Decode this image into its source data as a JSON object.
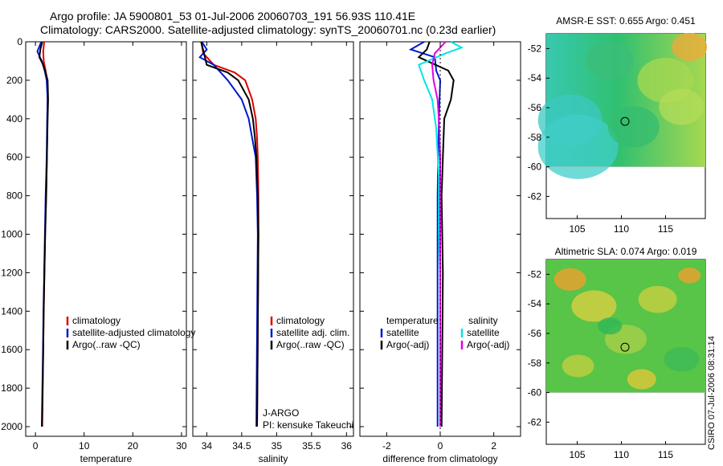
{
  "titles": {
    "line1": "Argo profile: JA 5900801_53 01-Jul-2006 20060703_191 56.93S 110.41E",
    "line2": "Climatology: CARS2000. Satellite-adjusted climatology: synTS_20060701.nc (0.23d earlier)"
  },
  "colors": {
    "climatology": "#e00000",
    "satellite": "#0018d0",
    "argo": "#000000",
    "satellite_diff": "#00e5e5",
    "argo_sal_diff": "#e000e0"
  },
  "chart_data": [
    {
      "type": "line",
      "name": "temperature-panel",
      "xlabel": "temperature",
      "ylabel": "",
      "xlim": [
        -2,
        31
      ],
      "ylim": [
        2050,
        0
      ],
      "xticks": [
        0,
        10,
        20,
        30
      ],
      "xtick_labels": [
        "0",
        "10",
        "20",
        "30"
      ],
      "yticks": [
        0,
        200,
        400,
        600,
        800,
        1000,
        1200,
        1400,
        1600,
        1800,
        2000
      ],
      "ytick_labels": [
        "0",
        "200",
        "400",
        "600",
        "800",
        "1000",
        "1200",
        "1400",
        "1600",
        "1800",
        "2000"
      ],
      "legend": [
        "climatology",
        "satellite-adjusted climatology",
        "Argo(..raw -QC)"
      ],
      "series": [
        {
          "name": "climatology",
          "color": "climatology",
          "depth": [
            0,
            50,
            100,
            150,
            200,
            300,
            400,
            600,
            800,
            1000,
            1200,
            1400,
            1600,
            2000
          ],
          "values": [
            1.8,
            1.6,
            1.7,
            2.1,
            2.4,
            2.5,
            2.45,
            2.35,
            2.2,
            2.0,
            1.85,
            1.7,
            1.6,
            1.4
          ]
        },
        {
          "name": "satellite-adjusted climatology",
          "color": "satellite",
          "depth": [
            0,
            50,
            100,
            150,
            200,
            300,
            400,
            600,
            800,
            1000,
            1200,
            1400,
            1600,
            2000
          ],
          "values": [
            1.2,
            0.4,
            1.3,
            1.9,
            2.3,
            2.5,
            2.4,
            2.3,
            2.1,
            1.95,
            1.8,
            1.65,
            1.55,
            1.3
          ]
        },
        {
          "name": "Argo(..raw -QC)",
          "color": "argo",
          "depth": [
            0,
            40,
            80,
            120,
            160,
            200,
            300,
            400,
            600,
            800,
            1000,
            1200,
            1400,
            1600,
            2000
          ],
          "values": [
            1.4,
            1.0,
            0.8,
            1.6,
            2.1,
            2.5,
            2.6,
            2.5,
            2.35,
            2.2,
            2.0,
            1.85,
            1.7,
            1.6,
            1.35
          ]
        }
      ]
    },
    {
      "type": "line",
      "name": "salinity-panel",
      "xlabel": "salinity",
      "xlim": [
        33.8,
        36.1
      ],
      "ylim": [
        2050,
        0
      ],
      "xticks": [
        34,
        34.5,
        35,
        35.5,
        36
      ],
      "xtick_labels": [
        "34",
        "34.5",
        "35",
        "35.5",
        "36"
      ],
      "legend": [
        "climatology",
        "satellite adj. clim.",
        "Argo(..raw -QC)"
      ],
      "annotations": [
        "J-ARGO",
        "PI: kensuke Takeuchi"
      ],
      "series": [
        {
          "name": "climatology",
          "color": "climatology",
          "depth": [
            0,
            60,
            120,
            160,
            200,
            300,
            400,
            500,
            600,
            800,
            1000,
            1500,
            2000
          ],
          "values": [
            33.92,
            33.95,
            34.1,
            34.4,
            34.55,
            34.65,
            34.7,
            34.72,
            34.73,
            34.74,
            34.74,
            34.73,
            34.72
          ]
        },
        {
          "name": "satellite adj. clim.",
          "color": "satellite",
          "depth": [
            0,
            40,
            80,
            120,
            160,
            200,
            300,
            400,
            500,
            600,
            800,
            1000,
            1500,
            2000
          ],
          "values": [
            33.93,
            34.0,
            33.9,
            34.1,
            34.2,
            34.3,
            34.5,
            34.6,
            34.65,
            34.7,
            34.72,
            34.73,
            34.72,
            34.71
          ]
        },
        {
          "name": "Argo(..raw -QC)",
          "color": "argo",
          "depth": [
            0,
            60,
            120,
            160,
            200,
            300,
            400,
            500,
            600,
            800,
            1000,
            1500,
            2000
          ],
          "values": [
            33.92,
            33.96,
            34.0,
            34.3,
            34.45,
            34.6,
            34.66,
            34.69,
            34.71,
            34.73,
            34.74,
            34.73,
            34.72
          ]
        }
      ]
    },
    {
      "type": "line",
      "name": "difference-panel",
      "xlabel": "difference from climatology",
      "xlim": [
        -3,
        3
      ],
      "ylim": [
        2050,
        0
      ],
      "xticks": [
        -2,
        0,
        2
      ],
      "xtick_labels": [
        "-2",
        "0",
        "2"
      ],
      "legend_left_title": "temperature",
      "legend_left": [
        "satellite",
        "Argo(-adj)"
      ],
      "legend_right_title": "salinity",
      "legend_right": [
        "satellite",
        "Argo(-adj)"
      ],
      "series": [
        {
          "name": "temperature satellite",
          "color": "satellite",
          "depth": [
            0,
            40,
            80,
            150,
            200,
            400,
            800,
            1200,
            2000
          ],
          "values": [
            -0.6,
            -1.1,
            -0.2,
            -0.15,
            0.0,
            -0.05,
            -0.1,
            -0.1,
            -0.1
          ]
        },
        {
          "name": "temperature Argo(-adj)",
          "color": "argo",
          "depth": [
            0,
            40,
            80,
            150,
            200,
            300,
            400,
            600,
            800,
            1200,
            2000
          ],
          "values": [
            -0.4,
            -0.5,
            -0.8,
            0.3,
            0.5,
            0.4,
            0.15,
            0.1,
            0.05,
            0.1,
            0.05
          ]
        },
        {
          "name": "salinity satellite",
          "color": "satellite_diff",
          "depth": [
            0,
            30,
            60,
            120,
            200,
            300,
            450,
            700,
            1000,
            1200,
            2000
          ],
          "values": [
            0.4,
            0.8,
            0.2,
            -0.8,
            -0.6,
            -0.3,
            -0.15,
            -0.05,
            -0.05,
            0.0,
            0.0
          ]
        },
        {
          "name": "salinity Argo(-adj)",
          "color": "argo_sal_diff",
          "depth": [
            0,
            60,
            120,
            200,
            300,
            400,
            600,
            800,
            1000,
            2000
          ],
          "values": [
            0.2,
            -0.2,
            -0.3,
            -0.25,
            -0.1,
            -0.05,
            0.0,
            0.0,
            0.0,
            0.0
          ]
        }
      ]
    },
    {
      "type": "heatmap",
      "name": "sst-map",
      "title": "AMSR-E SST: 0.655 Argo: 0.451",
      "xlim": [
        101.5,
        119.5
      ],
      "ylim": [
        -63.5,
        -51
      ],
      "xticks": [
        105,
        110,
        115
      ],
      "xtick_labels": [
        "105",
        "110",
        "115"
      ],
      "yticks": [
        -52,
        -54,
        -56,
        -58,
        -60,
        -62
      ],
      "ytick_labels": [
        "-52",
        "-54",
        "-56",
        "-58",
        "-60",
        "-62"
      ],
      "data_lat_min": -60,
      "marker": {
        "lon": 110.41,
        "lat": -56.93
      }
    },
    {
      "type": "heatmap",
      "name": "sla-map",
      "title": "Altimetric SLA: 0.074 Argo: 0.019",
      "xlim": [
        101.5,
        119.5
      ],
      "ylim": [
        -63.5,
        -51
      ],
      "xticks": [
        105,
        110,
        115
      ],
      "xtick_labels": [
        "105",
        "110",
        "115"
      ],
      "yticks": [
        -52,
        -54,
        -56,
        -58,
        -60,
        -62
      ],
      "ytick_labels": [
        "-52",
        "-54",
        "-56",
        "-58",
        "-60",
        "-62"
      ],
      "data_lat_min": -60,
      "marker": {
        "lon": 110.41,
        "lat": -56.93
      }
    }
  ],
  "footer": {
    "credit": "CSIRO 07-Jul-2006 08:31:14"
  }
}
